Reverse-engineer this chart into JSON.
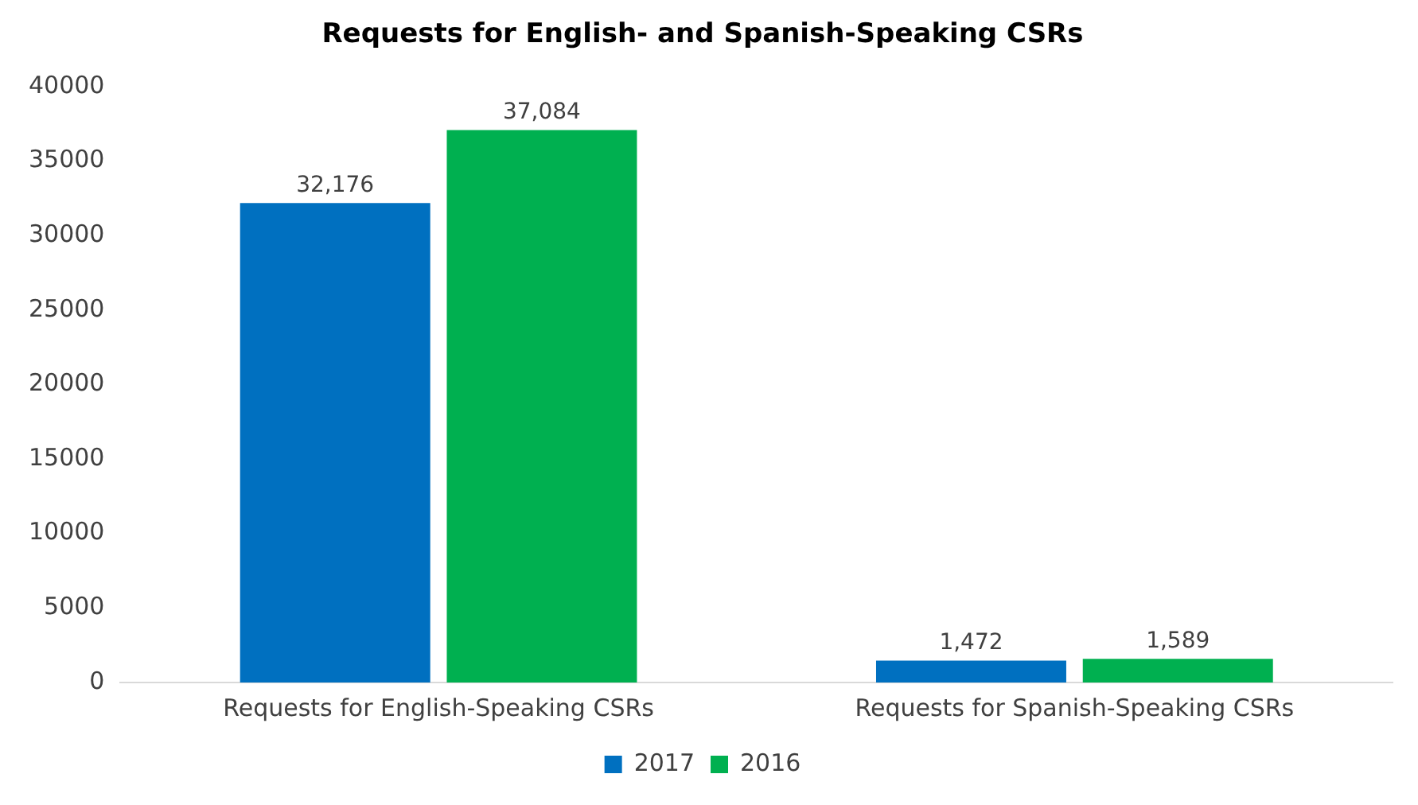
{
  "chart_data": {
    "type": "bar",
    "title": "Requests for English- and Spanish-Speaking CSRs",
    "categories": [
      "Requests for English-Speaking CSRs",
      "Requests for Spanish-Speaking CSRs"
    ],
    "series": [
      {
        "name": "2017",
        "color": "#0070c0",
        "values": [
          32176,
          1472
        ],
        "value_labels": [
          "32,176",
          "1,472"
        ]
      },
      {
        "name": "2016",
        "color": "#00b050",
        "values": [
          37084,
          1589
        ],
        "value_labels": [
          "37,084",
          "1,589"
        ]
      }
    ],
    "ylim": [
      0,
      40000
    ],
    "yticks": [
      0,
      5000,
      10000,
      15000,
      20000,
      25000,
      30000,
      35000,
      40000
    ],
    "grid": false,
    "legend": "bottom"
  }
}
